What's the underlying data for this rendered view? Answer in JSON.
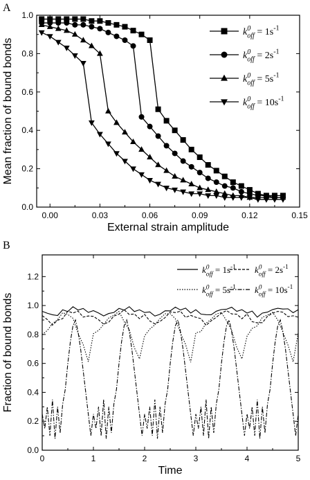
{
  "chart_data": [
    {
      "panel_label": "A",
      "type": "line",
      "xlabel": "External strain amplitude",
      "ylabel": "Mean fraction of bound bonds",
      "xlim": [
        -0.008,
        0.15
      ],
      "ylim": [
        0.0,
        1.0
      ],
      "xticks": [
        0.0,
        0.03,
        0.06,
        0.09,
        0.12,
        0.15
      ],
      "xtick_labels": [
        "0.00",
        "0.03",
        "0.06",
        "0.09",
        "0.12",
        "0.15"
      ],
      "yticks": [
        0.0,
        0.2,
        0.4,
        0.6,
        0.8,
        1.0
      ],
      "ytick_labels": [
        "0.0",
        "0.2",
        "0.4",
        "0.6",
        "0.8",
        "1.0"
      ],
      "legend_position": "top-right",
      "series": [
        {
          "legend_k": "k",
          "legend_sup": "0",
          "legend_sub": "off",
          "legend_eq": " = 1s",
          "legend_unit_sup": "-1",
          "marker": "square",
          "x": [
            -0.005,
            0.0,
            0.005,
            0.01,
            0.015,
            0.02,
            0.025,
            0.03,
            0.035,
            0.04,
            0.045,
            0.05,
            0.055,
            0.06,
            0.065,
            0.07,
            0.075,
            0.08,
            0.085,
            0.09,
            0.095,
            0.1,
            0.105,
            0.11,
            0.115,
            0.12,
            0.125,
            0.13,
            0.135,
            0.14
          ],
          "y": [
            0.98,
            0.98,
            0.98,
            0.98,
            0.98,
            0.98,
            0.97,
            0.97,
            0.96,
            0.95,
            0.94,
            0.92,
            0.9,
            0.87,
            0.51,
            0.45,
            0.4,
            0.35,
            0.3,
            0.26,
            0.22,
            0.19,
            0.16,
            0.13,
            0.11,
            0.09,
            0.07,
            0.06,
            0.06,
            0.06
          ]
        },
        {
          "legend_k": "k",
          "legend_sup": "0",
          "legend_sub": "off",
          "legend_eq": " = 2s",
          "legend_unit_sup": "-1",
          "marker": "circle",
          "x": [
            -0.005,
            0.0,
            0.005,
            0.01,
            0.015,
            0.02,
            0.025,
            0.03,
            0.035,
            0.04,
            0.045,
            0.05,
            0.055,
            0.06,
            0.065,
            0.07,
            0.075,
            0.08,
            0.085,
            0.09,
            0.095,
            0.1,
            0.105,
            0.11,
            0.115,
            0.12,
            0.125,
            0.13,
            0.135,
            0.14
          ],
          "y": [
            0.96,
            0.96,
            0.96,
            0.96,
            0.95,
            0.95,
            0.94,
            0.93,
            0.91,
            0.89,
            0.87,
            0.84,
            0.47,
            0.42,
            0.37,
            0.32,
            0.28,
            0.24,
            0.21,
            0.18,
            0.15,
            0.13,
            0.11,
            0.1,
            0.08,
            0.07,
            0.06,
            0.06,
            0.05,
            0.05
          ]
        },
        {
          "legend_k": "k",
          "legend_sup": "0",
          "legend_sub": "off",
          "legend_eq": " = 5s",
          "legend_unit_sup": "-1",
          "marker": "triangle-up",
          "x": [
            -0.005,
            0.0,
            0.005,
            0.01,
            0.015,
            0.02,
            0.025,
            0.03,
            0.035,
            0.04,
            0.045,
            0.05,
            0.055,
            0.06,
            0.065,
            0.07,
            0.075,
            0.08,
            0.085,
            0.09,
            0.095,
            0.1,
            0.105,
            0.11,
            0.115,
            0.12,
            0.125,
            0.13,
            0.135,
            0.14
          ],
          "y": [
            0.95,
            0.94,
            0.93,
            0.92,
            0.9,
            0.87,
            0.84,
            0.8,
            0.5,
            0.44,
            0.39,
            0.34,
            0.3,
            0.26,
            0.22,
            0.19,
            0.16,
            0.14,
            0.12,
            0.1,
            0.09,
            0.08,
            0.07,
            0.06,
            0.06,
            0.05,
            0.05,
            0.05,
            0.05,
            0.05
          ]
        },
        {
          "legend_k": "k",
          "legend_sup": "0",
          "legend_sub": "off",
          "legend_eq": " = 10s",
          "legend_unit_sup": "-1",
          "marker": "triangle-down",
          "x": [
            -0.005,
            0.0,
            0.005,
            0.01,
            0.015,
            0.02,
            0.025,
            0.03,
            0.035,
            0.04,
            0.045,
            0.05,
            0.055,
            0.06,
            0.065,
            0.07,
            0.075,
            0.08,
            0.085,
            0.09,
            0.095,
            0.1,
            0.105,
            0.11,
            0.115,
            0.12,
            0.125,
            0.13,
            0.135,
            0.14
          ],
          "y": [
            0.91,
            0.89,
            0.86,
            0.83,
            0.79,
            0.75,
            0.44,
            0.38,
            0.33,
            0.28,
            0.24,
            0.2,
            0.17,
            0.14,
            0.12,
            0.1,
            0.09,
            0.08,
            0.07,
            0.07,
            0.06,
            0.06,
            0.05,
            0.05,
            0.05,
            0.05,
            0.04,
            0.04,
            0.04,
            0.04
          ]
        }
      ]
    },
    {
      "panel_label": "B",
      "type": "line",
      "xlabel": "Time",
      "ylabel": "Fraction of bound bonds",
      "xlim": [
        0,
        5
      ],
      "ylim": [
        0.0,
        1.35
      ],
      "xticks": [
        0,
        1,
        2,
        3,
        4,
        5
      ],
      "xtick_labels": [
        "0",
        "1",
        "2",
        "3",
        "4",
        "5"
      ],
      "yticks": [
        0.0,
        0.2,
        0.4,
        0.6,
        0.8,
        1.0,
        1.2
      ],
      "ytick_labels": [
        "0.0",
        "0.2",
        "0.4",
        "0.6",
        "0.8",
        "1.0",
        "1.2"
      ],
      "legend_position": "top",
      "period": 1.0,
      "series": [
        {
          "legend_k": "k",
          "legend_sup": "0",
          "legend_sub": "off",
          "legend_eq": " = 1s",
          "legend_unit_sup": "-1",
          "line_style": "solid",
          "one_period_t": [
            0.0,
            0.1,
            0.2,
            0.3,
            0.4,
            0.5,
            0.6,
            0.7,
            0.8,
            0.9,
            1.0
          ],
          "one_period_y": [
            0.96,
            0.95,
            0.93,
            0.94,
            0.96,
            0.97,
            0.98,
            0.98,
            0.97,
            0.96,
            0.96
          ]
        },
        {
          "legend_k": "k",
          "legend_sup": "0",
          "legend_sub": "off",
          "legend_eq": " = 2s",
          "legend_unit_sup": "-1",
          "line_style": "dashed",
          "one_period_t": [
            0.0,
            0.1,
            0.2,
            0.3,
            0.4,
            0.5,
            0.6,
            0.7,
            0.8,
            0.9,
            1.0
          ],
          "one_period_y": [
            0.93,
            0.9,
            0.87,
            0.89,
            0.92,
            0.95,
            0.96,
            0.95,
            0.93,
            0.92,
            0.93
          ]
        },
        {
          "legend_k": "k",
          "legend_sup": "0",
          "legend_sub": "off",
          "legend_eq": " = 5s",
          "legend_unit_sup": "-1",
          "line_style": "dotted",
          "one_period_t": [
            0.0,
            0.1,
            0.2,
            0.3,
            0.4,
            0.5,
            0.6,
            0.7,
            0.8,
            0.9,
            1.0
          ],
          "one_period_y": [
            0.8,
            0.83,
            0.87,
            0.91,
            0.94,
            0.95,
            0.9,
            0.82,
            0.72,
            0.62,
            0.8
          ]
        },
        {
          "legend_k": "k",
          "legend_sup": "0",
          "legend_sub": "off",
          "legend_eq": " = 10s",
          "legend_unit_sup": "-1",
          "line_style": "dashdot",
          "one_period_t": [
            0.0,
            0.05,
            0.1,
            0.15,
            0.2,
            0.25,
            0.3,
            0.35,
            0.4,
            0.45,
            0.5,
            0.55,
            0.6,
            0.65,
            0.7,
            0.75,
            0.8,
            0.85,
            0.9,
            0.95,
            1.0
          ],
          "one_period_y": [
            0.25,
            0.15,
            0.3,
            0.1,
            0.35,
            0.08,
            0.3,
            0.12,
            0.32,
            0.42,
            0.6,
            0.75,
            0.86,
            0.9,
            0.82,
            0.7,
            0.55,
            0.4,
            0.25,
            0.1,
            0.25
          ]
        }
      ]
    }
  ]
}
